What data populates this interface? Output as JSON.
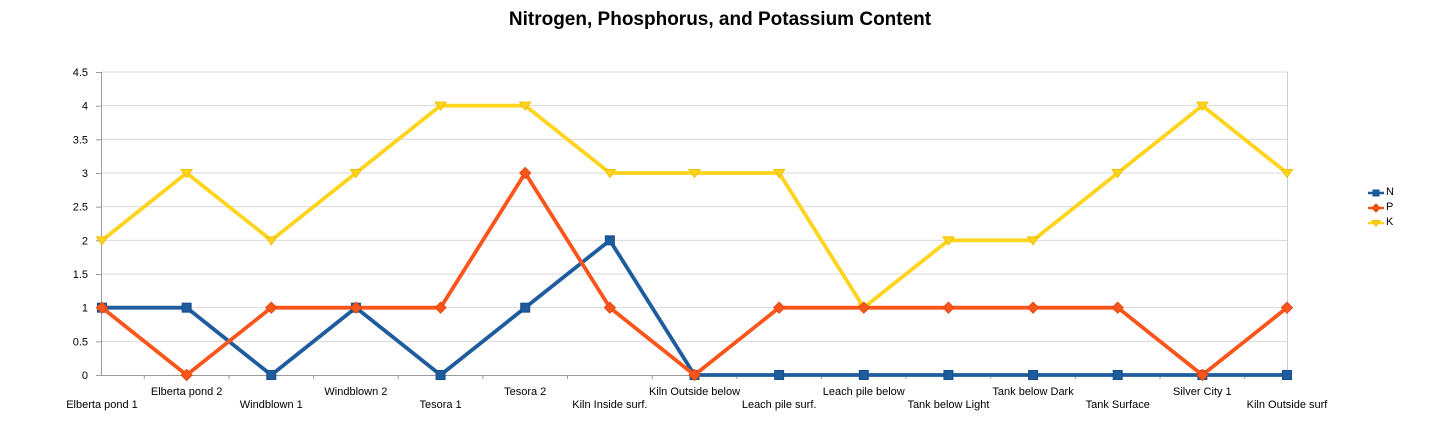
{
  "title": "Nitrogen, Phosphorus, and Potassium Content",
  "chart_data": {
    "type": "line",
    "title": "Nitrogen, Phosphorus, and Potassium Content",
    "categories": [
      "Elberta pond 1",
      "Elberta pond 2",
      "Windblown 1",
      "Windblown 2",
      "Tesora 1",
      "Tesora 2",
      "Kiln Inside surf.",
      "Kiln Outside below",
      "Leach pile surf.",
      "Leach pile below",
      "Tank below Light",
      "Tank below Dark",
      "Tank Surface",
      "Silver City 1",
      "Kiln Outside surf"
    ],
    "series": [
      {
        "name": "N",
        "marker": "square",
        "color": "#1E5C9E",
        "marker_stroke": "#164E8C",
        "values": [
          1,
          1,
          0,
          1,
          0,
          1,
          2,
          0,
          0,
          0,
          0,
          0,
          0,
          0,
          0
        ]
      },
      {
        "name": "P",
        "marker": "diamond",
        "color": "#FB551C",
        "marker_stroke": "#E04A10",
        "values": [
          1,
          0,
          1,
          1,
          1,
          3,
          1,
          0,
          1,
          1,
          1,
          1,
          1,
          0,
          1
        ]
      },
      {
        "name": "K",
        "marker": "triangle-down",
        "color": "#FFD41E",
        "marker_stroke": "#EFC000",
        "values": [
          2,
          3,
          2,
          3,
          4,
          4,
          3,
          3,
          3,
          1,
          2,
          2,
          3,
          4,
          3
        ]
      }
    ],
    "ylim": [
      0,
      4.5
    ],
    "yticks": [
      0,
      0.5,
      1,
      1.5,
      2,
      2.5,
      3,
      3.5,
      4,
      4.5
    ],
    "ytick_labels": [
      "0",
      "0.5",
      "1",
      "1.5",
      "2",
      "2.5",
      "3",
      "3.5",
      "4",
      "4.5"
    ],
    "xlabel": "",
    "ylabel": "",
    "grid": "horizontal",
    "legend_position": "right",
    "legend_items": [
      "N",
      "P",
      "K"
    ],
    "draw_order": [
      "N",
      "K",
      "P"
    ],
    "x_label_rows": "alternating"
  },
  "colors": {
    "gridline": "#D9D9D9",
    "axis": "#9B9B9B",
    "right_border": "#CFCFCF",
    "text": "#000000",
    "background": "#FFFFFF"
  }
}
